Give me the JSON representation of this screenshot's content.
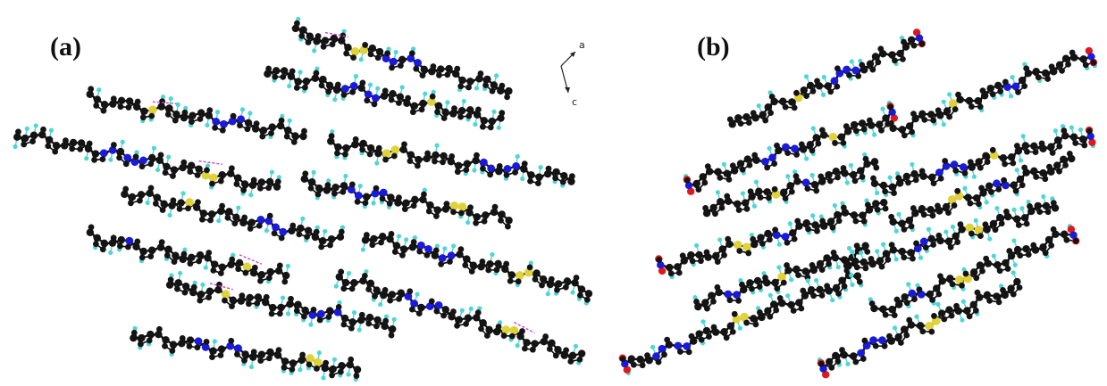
{
  "panels": [
    {
      "label": "(a)"
    },
    {
      "label": "(b)"
    }
  ],
  "orientation": {
    "axis_a": "a",
    "axis_c": "c"
  },
  "atom_colors": {
    "carbon": "#141414",
    "hydrogen": "#4fd6d6",
    "nitrogen": "#1a1adb",
    "sulfur": "#e0d23a",
    "oxygen": "#e01818",
    "bond": "#0a0a0a",
    "contact": "#d040c8"
  }
}
